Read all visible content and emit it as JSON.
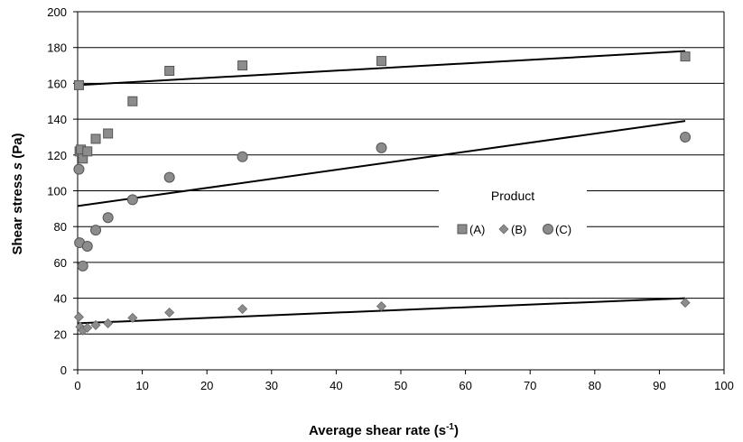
{
  "chart_data": {
    "type": "scatter",
    "xlabel": "Average shear rate  (s",
    "xlabel_sup": "-1",
    "xlabel_tail": ")",
    "ylabel": "Shear stress ",
    "ylabel_italic": "s",
    "ylabel_tail": " (Pa)",
    "xlim": [
      0,
      100
    ],
    "ylim": [
      0,
      200
    ],
    "xticks": [
      0,
      10,
      20,
      30,
      40,
      50,
      60,
      70,
      80,
      90,
      100
    ],
    "yticks": [
      0,
      20,
      40,
      60,
      80,
      100,
      120,
      140,
      160,
      180,
      200
    ],
    "grid": "horizontal",
    "legend": {
      "title": "Product",
      "placement": "right",
      "entries": [
        "(A)",
        "(B)",
        "(C)"
      ]
    },
    "series": [
      {
        "name": "(A)",
        "marker": "square",
        "color": "#8c8c8c",
        "points": [
          [
            0.2,
            159
          ],
          [
            0.3,
            122
          ],
          [
            0.5,
            123
          ],
          [
            0.8,
            118
          ],
          [
            1.5,
            122
          ],
          [
            2.8,
            129
          ],
          [
            4.7,
            132
          ],
          [
            8.5,
            150
          ],
          [
            14.2,
            167
          ],
          [
            25.5,
            170
          ],
          [
            47,
            172.5
          ],
          [
            94,
            175
          ]
        ],
        "trend": [
          [
            0,
            159
          ],
          [
            94,
            178
          ]
        ]
      },
      {
        "name": "(B)",
        "marker": "diamond",
        "color": "#8c8c8c",
        "points": [
          [
            0.2,
            29.5
          ],
          [
            0.4,
            24
          ],
          [
            0.8,
            22
          ],
          [
            1.5,
            23.5
          ],
          [
            2.8,
            25
          ],
          [
            4.7,
            26
          ],
          [
            8.5,
            29
          ],
          [
            14.2,
            32
          ],
          [
            25.5,
            34
          ],
          [
            47,
            35.5
          ],
          [
            94,
            37.5
          ]
        ],
        "trend": [
          [
            0,
            26
          ],
          [
            94,
            40
          ]
        ]
      },
      {
        "name": "(C)",
        "marker": "circle",
        "color": "#8c8c8c",
        "points": [
          [
            0.2,
            112
          ],
          [
            0.3,
            71
          ],
          [
            0.8,
            58
          ],
          [
            1.5,
            69
          ],
          [
            2.8,
            78
          ],
          [
            4.7,
            85
          ],
          [
            8.5,
            95
          ],
          [
            14.2,
            107.5
          ],
          [
            25.5,
            119
          ],
          [
            47,
            124
          ],
          [
            94,
            130
          ]
        ],
        "trend": [
          [
            0,
            91.5
          ],
          [
            94,
            139
          ]
        ]
      }
    ]
  }
}
